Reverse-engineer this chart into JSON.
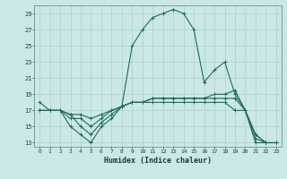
{
  "xlabel": "Humidex (Indice chaleur)",
  "xlim": [
    -0.5,
    23.5
  ],
  "ylim": [
    12.5,
    30
  ],
  "yticks": [
    13,
    15,
    17,
    19,
    21,
    23,
    25,
    27,
    29
  ],
  "xticks": [
    0,
    1,
    2,
    3,
    4,
    5,
    6,
    7,
    8,
    9,
    10,
    11,
    12,
    13,
    14,
    15,
    16,
    17,
    18,
    19,
    20,
    21,
    22,
    23
  ],
  "bg_color": "#cce8e6",
  "grid_color": "#aacfcd",
  "line_color": "#1a6b5e",
  "line1": [
    18,
    17,
    17,
    15,
    14,
    13,
    15,
    16,
    17.5,
    25,
    27,
    28.5,
    29,
    29.5,
    29,
    27,
    20.5,
    22,
    23,
    19,
    17,
    13,
    13,
    13
  ],
  "line2": [
    17,
    17,
    17,
    16,
    16,
    15,
    16,
    17,
    17.5,
    18,
    18,
    18.5,
    18.5,
    18.5,
    18.5,
    18.5,
    18.5,
    19,
    19,
    19.5,
    17,
    13.5,
    13,
    13
  ],
  "line3": [
    17,
    17,
    17,
    16.5,
    16.5,
    16,
    16.5,
    17,
    17.5,
    18,
    18,
    18,
    18,
    18,
    18,
    18,
    18,
    18,
    18,
    17,
    17,
    14,
    13,
    13
  ],
  "line4": [
    17,
    17,
    17,
    16.5,
    15,
    14,
    15.5,
    16.5,
    17.5,
    18,
    18,
    18.5,
    18.5,
    18.5,
    18.5,
    18.5,
    18.5,
    18.5,
    18.5,
    18.5,
    17,
    14,
    13,
    13
  ]
}
